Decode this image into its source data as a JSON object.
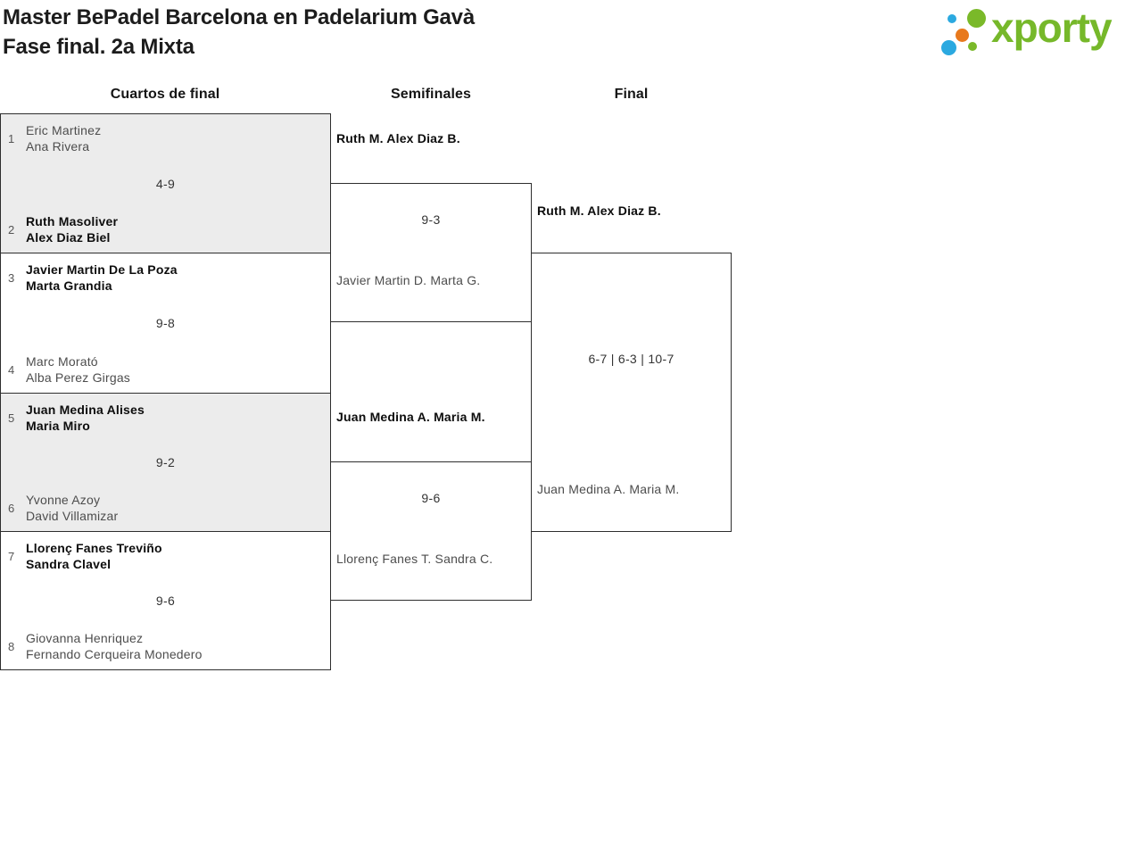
{
  "header": {
    "title": "Master BePadel Barcelona en Padelarium Gavà",
    "subtitle": "Fase final. 2a Mixta",
    "logo": {
      "wordmark": "xporty",
      "green": "#76B82A",
      "blue": "#2BA9E0",
      "orange": "#E8791D"
    }
  },
  "columns": [
    {
      "label": "Cuartos de final"
    },
    {
      "label": "Semifinales"
    },
    {
      "label": "Final"
    }
  ],
  "colors": {
    "block_background": "#ECECEC",
    "border": "#2E2E2E",
    "winner_text": "#0D0D0D",
    "loser_text": "#4D4D4D",
    "score_text": "#333333",
    "seed_text": "#555555"
  },
  "bracket": {
    "quarterfinals": [
      {
        "seed_top": "1",
        "team_top": [
          "Eric Martinez",
          "Ana Rivera"
        ],
        "score": "4-9",
        "seed_bottom": "2",
        "team_bottom": [
          "Ruth Masoliver",
          "Alex Diaz Biel"
        ],
        "winner": "bottom"
      },
      {
        "seed_top": "3",
        "team_top": [
          "Javier Martin De La Poza",
          "Marta Grandia"
        ],
        "score": "9-8",
        "seed_bottom": "4",
        "team_bottom": [
          "Marc Morató",
          "Alba Perez Girgas"
        ],
        "winner": "top"
      },
      {
        "seed_top": "5",
        "team_top": [
          "Juan Medina Alises",
          "Maria Miro"
        ],
        "score": "9-2",
        "seed_bottom": "6",
        "team_bottom": [
          "Yvonne Azoy",
          "David Villamizar"
        ],
        "winner": "top"
      },
      {
        "seed_top": "7",
        "team_top": [
          "Llorenç Fanes Treviño",
          "Sandra Clavel"
        ],
        "score": "9-6",
        "seed_bottom": "8",
        "team_bottom": [
          "Giovanna Henriquez",
          "Fernando Cerqueira Monedero"
        ],
        "winner": "top"
      }
    ],
    "semifinals": [
      {
        "team_top": [
          "Ruth M.",
          "Alex Diaz B."
        ],
        "score": "9-3",
        "team_bottom": [
          "Javier Martin D.",
          "Marta G."
        ],
        "winner": "top"
      },
      {
        "team_top": [
          "Juan Medina A.",
          "Maria M."
        ],
        "score": "9-6",
        "team_bottom": [
          "Llorenç Fanes T.",
          "Sandra C."
        ],
        "winner": "top"
      }
    ],
    "final": {
      "team_top": [
        "Ruth M.",
        "Alex Diaz B."
      ],
      "score": "6-7 | 6-3 | 10-7",
      "team_bottom": [
        "Juan Medina A.",
        "Maria M."
      ],
      "winner": "top"
    }
  }
}
